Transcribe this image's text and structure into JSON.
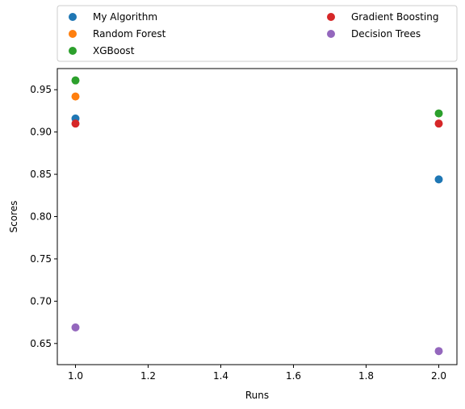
{
  "chart_data": {
    "type": "scatter",
    "title": "",
    "xlabel": "Runs",
    "ylabel": "Scores",
    "xlim": [
      0.95,
      2.05
    ],
    "ylim": [
      0.625,
      0.975
    ],
    "xticks": [
      1.0,
      1.2,
      1.4,
      1.6,
      1.8,
      2.0
    ],
    "xtick_labels": [
      "1.0",
      "1.2",
      "1.4",
      "1.6",
      "1.8",
      "2.0"
    ],
    "yticks": [
      0.65,
      0.7,
      0.75,
      0.8,
      0.85,
      0.9,
      0.95
    ],
    "ytick_labels": [
      "0.65",
      "0.70",
      "0.75",
      "0.80",
      "0.85",
      "0.90",
      "0.95"
    ],
    "grid": false,
    "legend_position": "above-plot",
    "legend_columns": 2,
    "series": [
      {
        "name": "My Algorithm",
        "color": "#1f77b4",
        "points": [
          [
            1.0,
            0.916
          ],
          [
            2.0,
            0.844
          ]
        ]
      },
      {
        "name": "Random Forest",
        "color": "#ff7f0e",
        "points": [
          [
            1.0,
            0.942
          ]
        ]
      },
      {
        "name": "XGBoost",
        "color": "#2ca02c",
        "points": [
          [
            1.0,
            0.961
          ],
          [
            2.0,
            0.922
          ]
        ]
      },
      {
        "name": "Gradient Boosting",
        "color": "#d62728",
        "points": [
          [
            1.0,
            0.91
          ],
          [
            2.0,
            0.91
          ]
        ]
      },
      {
        "name": "Decision Trees",
        "color": "#9467bd",
        "points": [
          [
            1.0,
            0.669
          ],
          [
            2.0,
            0.641
          ]
        ]
      }
    ]
  }
}
